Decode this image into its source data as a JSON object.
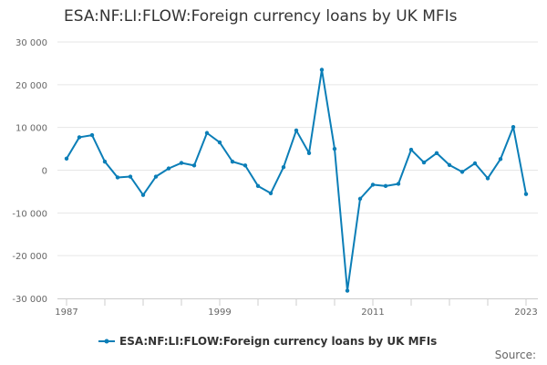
{
  "chart_data": {
    "type": "line",
    "title": "ESA:NF:LI:FLOW:Foreign currency loans by UK MFIs",
    "xlabel": "",
    "ylabel": "",
    "ylim": [
      -30000,
      30000
    ],
    "yticks": [
      30000,
      20000,
      10000,
      0,
      -10000,
      -20000,
      -30000
    ],
    "ytick_labels": [
      "30 000",
      "20 000",
      "10 000",
      "0",
      "-10 000",
      "-20 000",
      "-30 000"
    ],
    "xlim": [
      1987,
      2023
    ],
    "xtick_labels": [
      "1987",
      "1999",
      "2011",
      "2023"
    ],
    "grid": true,
    "legend_position": "bottom",
    "color": "#0b7eb7",
    "series": [
      {
        "name": "ESA:NF:LI:FLOW:Foreign currency loans by UK MFIs",
        "x": [
          1987,
          1988,
          1989,
          1990,
          1991,
          1992,
          1993,
          1994,
          1995,
          1996,
          1997,
          1998,
          1999,
          2000,
          2001,
          2002,
          2003,
          2004,
          2005,
          2006,
          2007,
          2008,
          2009,
          2010,
          2011,
          2012,
          2013,
          2014,
          2015,
          2016,
          2017,
          2018,
          2019,
          2020,
          2021,
          2022,
          2023
        ],
        "values": [
          2700,
          7700,
          8200,
          2000,
          -1700,
          -1500,
          -5800,
          -1500,
          400,
          1700,
          1100,
          8700,
          6500,
          2000,
          1100,
          -3700,
          -5400,
          700,
          9300,
          4000,
          23500,
          5000,
          -28200,
          -6700,
          -3400,
          -3700,
          -3200,
          4800,
          1800,
          4000,
          1200,
          -400,
          1600,
          -1900,
          2600,
          10100,
          -5600
        ]
      }
    ]
  },
  "footer": {
    "source_label": "Source:"
  }
}
